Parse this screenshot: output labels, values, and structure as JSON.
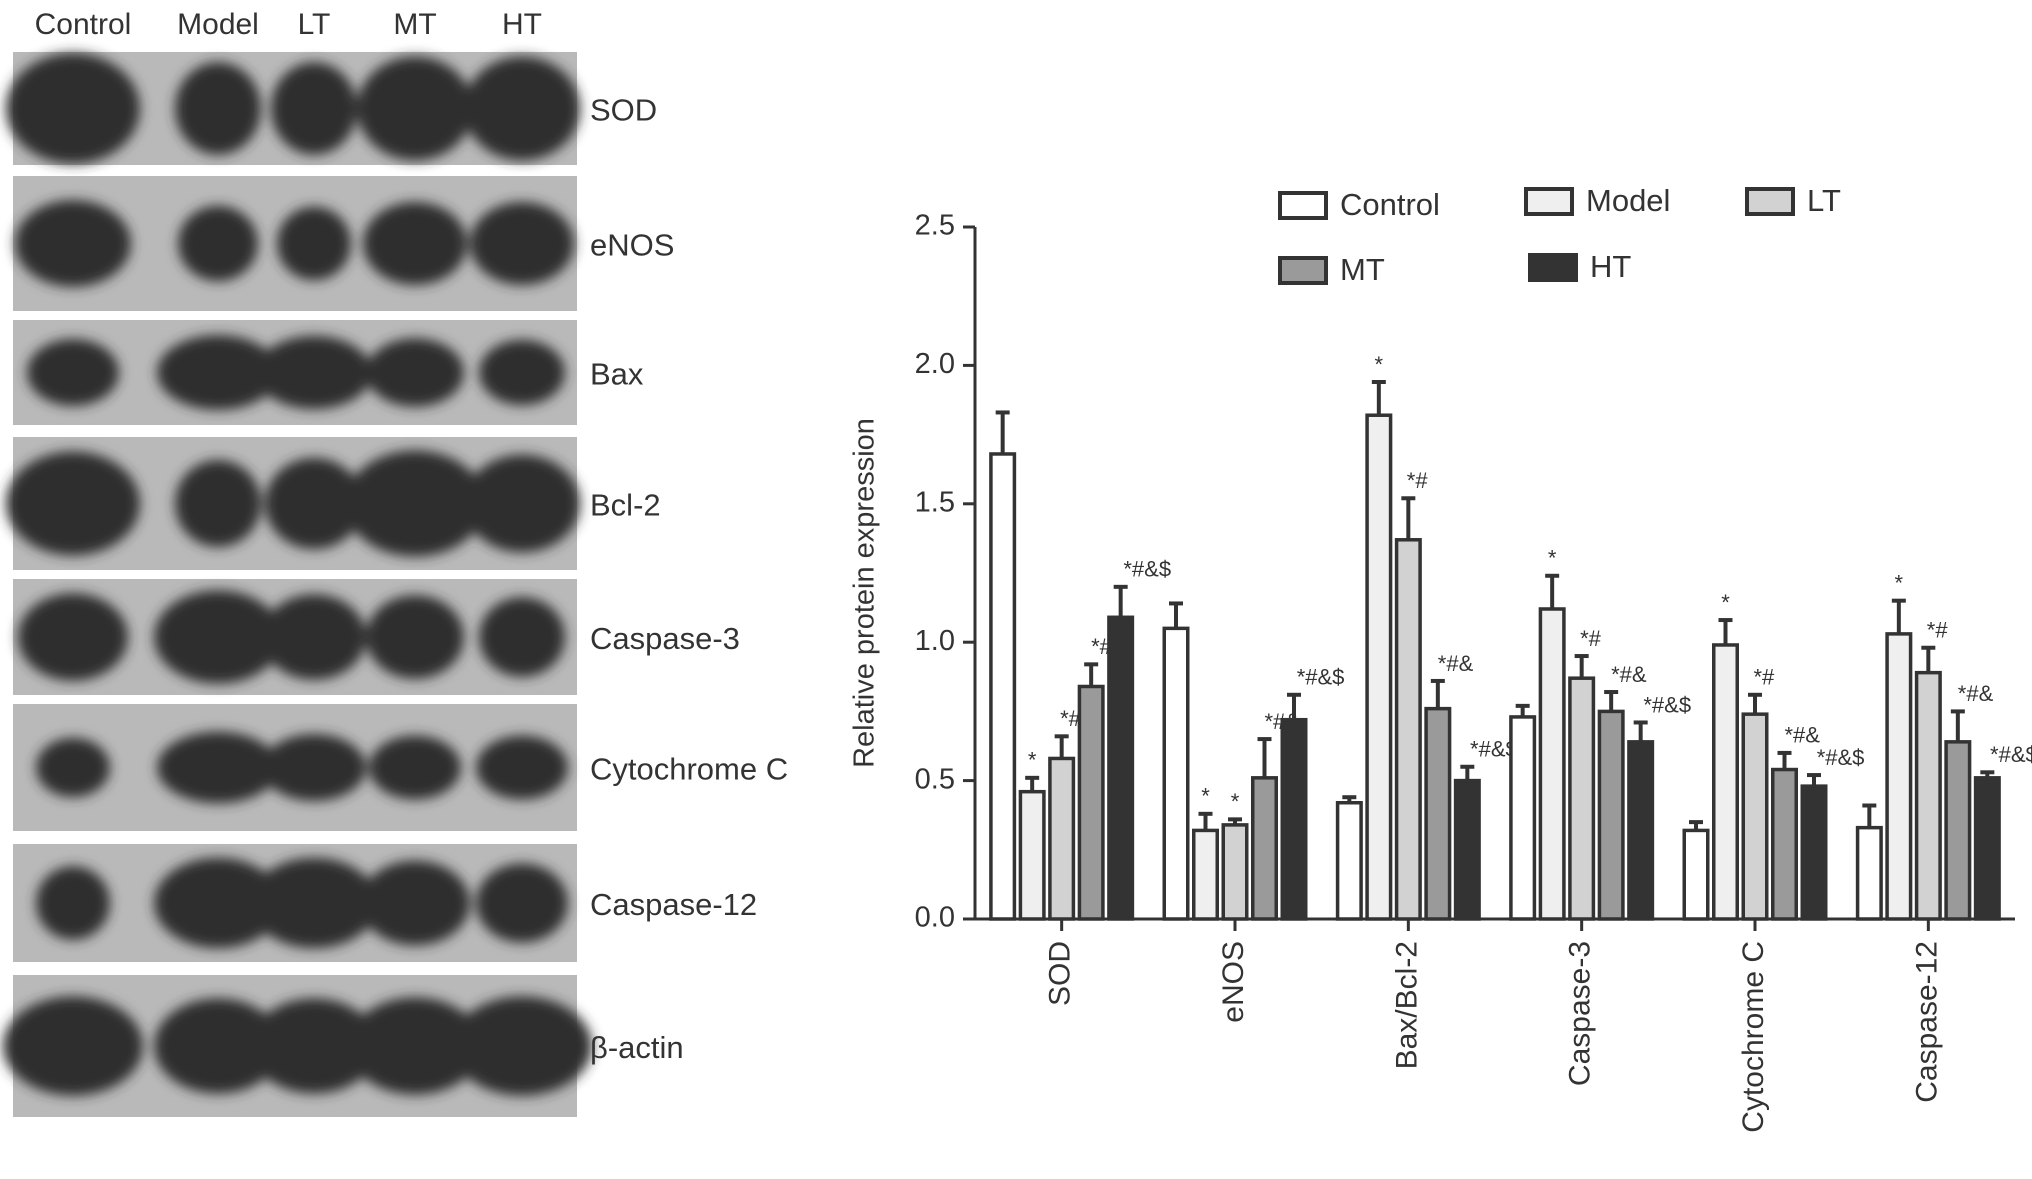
{
  "blot": {
    "lanes": [
      "Control",
      "Model",
      "LT",
      "MT",
      "HT"
    ],
    "proteins": [
      "SOD",
      "eNOS",
      "Bax",
      "Bcl-2",
      "Caspase-3",
      "Cytochrome C",
      "Caspase-12",
      "β-actin"
    ]
  },
  "chart_data": {
    "type": "bar",
    "y_label": "Relative protein expression",
    "categories": [
      "SOD",
      "eNOS",
      "Bax/Bcl-2",
      "Caspase-3",
      "Cytochrome C",
      "Caspase-12"
    ],
    "series": [
      {
        "name": "Control",
        "color": "#ffffff",
        "values": [
          1.68,
          1.05,
          0.42,
          0.73,
          0.32,
          0.33
        ],
        "errors": [
          0.15,
          0.09,
          0.02,
          0.04,
          0.03,
          0.08
        ],
        "annotations": [
          null,
          null,
          null,
          null,
          null,
          null
        ]
      },
      {
        "name": "Model",
        "color": "#efefef",
        "values": [
          0.46,
          0.32,
          1.82,
          1.12,
          0.99,
          1.03
        ],
        "errors": [
          0.05,
          0.06,
          0.12,
          0.12,
          0.09,
          0.12
        ],
        "annotations": [
          "*",
          "*",
          "*",
          "*",
          "*",
          "*"
        ]
      },
      {
        "name": "LT",
        "color": "#d2d2d2",
        "values": [
          0.58,
          0.34,
          1.37,
          0.87,
          0.74,
          0.89
        ],
        "errors": [
          0.08,
          0.02,
          0.15,
          0.08,
          0.07,
          0.09
        ],
        "annotations": [
          "*#",
          "*",
          "*#",
          "*#",
          "*#",
          "*#"
        ]
      },
      {
        "name": "MT",
        "color": "#9a9a9a",
        "values": [
          0.84,
          0.51,
          0.76,
          0.75,
          0.54,
          0.64
        ],
        "errors": [
          0.08,
          0.14,
          0.1,
          0.07,
          0.06,
          0.11
        ],
        "annotations": [
          "*#&",
          "*#&",
          "*#&",
          "*#&",
          "*#&",
          "*#&"
        ]
      },
      {
        "name": "HT",
        "color": "#333333",
        "values": [
          1.09,
          0.72,
          0.5,
          0.64,
          0.48,
          0.51
        ],
        "errors": [
          0.11,
          0.09,
          0.05,
          0.07,
          0.04,
          0.02
        ],
        "annotations": [
          "*#&$",
          "*#&$",
          "*#&$",
          "*#&$",
          "*#&$",
          "*#&$"
        ]
      }
    ],
    "ylim": [
      0,
      2.5
    ],
    "yticks": [
      {
        "value": 0,
        "label": "0.0"
      },
      0.5,
      {
        "value": 1,
        "label": "1.0"
      },
      1.5,
      {
        "value": 2,
        "label": "2.0"
      },
      2.5
    ]
  }
}
